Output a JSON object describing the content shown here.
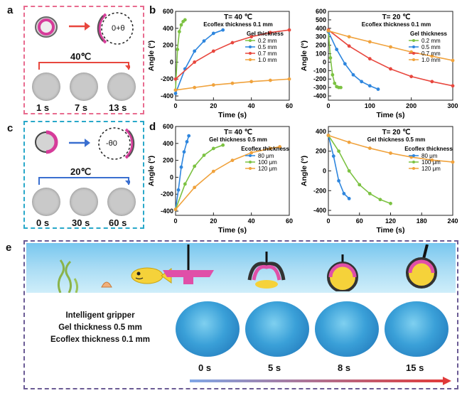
{
  "panels": {
    "a": {
      "label": "a",
      "temp": "40℃",
      "theta_label": "0+θ",
      "times": [
        "1 s",
        "7 s",
        "13 s"
      ]
    },
    "c": {
      "label": "c",
      "temp": "20℃",
      "theta_label": "-θ0",
      "times": [
        "0 s",
        "30 s",
        "60 s"
      ]
    },
    "b": {
      "label": "b"
    },
    "d": {
      "label": "d"
    },
    "e": {
      "label": "e",
      "desc": [
        "Intelligent gripper",
        "Gel thickness 0.5 mm",
        "Ecoflex thickness 0.1 mm"
      ],
      "times": [
        "0 s",
        "5 s",
        "8 s",
        "15 s"
      ]
    }
  },
  "colors": {
    "green": "#7cc242",
    "blue": "#2e86de",
    "red": "#e8473e",
    "orange": "#f0a23c",
    "pink_border": "#e86b8f",
    "cyan_border": "#29a8c9",
    "purple_border": "#6b5b95",
    "accent_red": "#e03a3a",
    "accent_blue": "#3a6fd0"
  },
  "chart_data": [
    {
      "type": "line",
      "title": "T= 40 ℃",
      "subtitle": "Ecoflex thickness 0.1 mm",
      "legend_title": "Gel thickness",
      "legend_position": "right",
      "xlabel": "Time (s)",
      "ylabel": "Angle (°)",
      "xlim": [
        0,
        60
      ],
      "ylim": [
        -450,
        600
      ],
      "xticks": [
        0,
        20,
        40,
        60
      ],
      "yticks": [
        -400,
        -200,
        0,
        200,
        400,
        600
      ],
      "series": [
        {
          "name": "0.2 mm",
          "color": "#7cc242",
          "x": [
            0,
            1,
            2,
            3,
            4,
            5
          ],
          "y": [
            -330,
            150,
            360,
            440,
            480,
            500
          ]
        },
        {
          "name": "0.5 mm",
          "color": "#2e86de",
          "x": [
            0,
            5,
            10,
            15,
            20,
            25
          ],
          "y": [
            -370,
            -80,
            130,
            250,
            340,
            380
          ]
        },
        {
          "name": "0.7 mm",
          "color": "#e8473e",
          "x": [
            0,
            10,
            20,
            30,
            40,
            50,
            60
          ],
          "y": [
            -200,
            0,
            130,
            230,
            300,
            350,
            380
          ]
        },
        {
          "name": "1.0 mm",
          "color": "#f0a23c",
          "x": [
            0,
            10,
            20,
            30,
            40,
            50,
            60
          ],
          "y": [
            -330,
            -300,
            -270,
            -250,
            -230,
            -215,
            -200
          ]
        }
      ]
    },
    {
      "type": "line",
      "title": "T= 20 ℃",
      "subtitle": "Ecoflex thickness 0.1 mm",
      "legend_title": "Gel thickness",
      "legend_position": "right",
      "xlabel": "Time (s)",
      "ylabel": "Angle (°)",
      "xlim": [
        0,
        300
      ],
      "ylim": [
        -450,
        600
      ],
      "xticks": [
        0,
        100,
        200,
        300
      ],
      "yticks": [
        -400,
        -300,
        -200,
        -100,
        0,
        100,
        200,
        300,
        400,
        500,
        600
      ],
      "series": [
        {
          "name": "0.2 mm",
          "color": "#7cc242",
          "x": [
            0,
            5,
            10,
            15,
            20,
            25,
            30
          ],
          "y": [
            360,
            50,
            -150,
            -250,
            -290,
            -300,
            -300
          ]
        },
        {
          "name": "0.5 mm",
          "color": "#2e86de",
          "x": [
            0,
            20,
            40,
            60,
            80,
            100,
            120
          ],
          "y": [
            360,
            150,
            -20,
            -150,
            -230,
            -280,
            -320
          ]
        },
        {
          "name": "0.7 mm",
          "color": "#e8473e",
          "x": [
            0,
            50,
            100,
            150,
            200,
            250,
            300
          ],
          "y": [
            380,
            190,
            40,
            -80,
            -170,
            -230,
            -280
          ]
        },
        {
          "name": "1.0 mm",
          "color": "#f0a23c",
          "x": [
            0,
            50,
            100,
            150,
            200,
            250,
            300
          ],
          "y": [
            370,
            300,
            240,
            180,
            120,
            70,
            20
          ]
        }
      ]
    },
    {
      "type": "line",
      "title": "T= 40 ℃",
      "subtitle": "Gel thickness 0.5 mm",
      "legend_title": "Ecoflex thickness",
      "legend_position": "right",
      "xlabel": "Time (s)",
      "ylabel": "Angle (°)",
      "xlim": [
        0,
        60
      ],
      "ylim": [
        -450,
        600
      ],
      "xticks": [
        0,
        20,
        40,
        60
      ],
      "yticks": [
        -400,
        -200,
        0,
        200,
        400,
        600
      ],
      "series": [
        {
          "name": "80 μm",
          "color": "#2e86de",
          "x": [
            0,
            1.5,
            3,
            4.5,
            6,
            7
          ],
          "y": [
            -380,
            -150,
            120,
            300,
            420,
            490
          ]
        },
        {
          "name": "100 μm",
          "color": "#7cc242",
          "x": [
            0,
            5,
            10,
            15,
            20,
            25
          ],
          "y": [
            -380,
            -80,
            130,
            260,
            340,
            380
          ]
        },
        {
          "name": "120 μm",
          "color": "#f0a23c",
          "x": [
            0,
            10,
            20,
            30,
            40,
            50,
            55
          ],
          "y": [
            -380,
            -120,
            70,
            200,
            290,
            340,
            360
          ]
        }
      ]
    },
    {
      "type": "line",
      "title": "T= 20 ℃",
      "subtitle": "Gel thickness 0.5 mm",
      "legend_title": "Ecoflex thickness",
      "legend_position": "right",
      "xlabel": "Time (s)",
      "ylabel": "Angle (°)",
      "xlim": [
        0,
        240
      ],
      "ylim": [
        -450,
        450
      ],
      "xticks": [
        0,
        60,
        120,
        180,
        240
      ],
      "yticks": [
        -400,
        -200,
        0,
        200,
        400
      ],
      "series": [
        {
          "name": "80 μm",
          "color": "#2e86de",
          "x": [
            0,
            10,
            20,
            30,
            40
          ],
          "y": [
            360,
            150,
            -100,
            -230,
            -280
          ]
        },
        {
          "name": "100 μm",
          "color": "#7cc242",
          "x": [
            0,
            20,
            40,
            60,
            80,
            100,
            120
          ],
          "y": [
            360,
            200,
            0,
            -140,
            -230,
            -290,
            -330
          ]
        },
        {
          "name": "120 μm",
          "color": "#f0a23c",
          "x": [
            0,
            40,
            80,
            120,
            160,
            200,
            240
          ],
          "y": [
            360,
            290,
            230,
            180,
            140,
            110,
            90
          ]
        }
      ]
    }
  ]
}
